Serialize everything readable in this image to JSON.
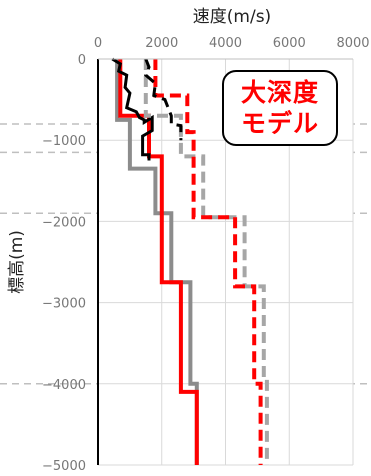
{
  "chart_data": {
    "type": "line",
    "title": "",
    "xlabel": "速度(m/s)",
    "ylabel": "標高(m)",
    "xlim": [
      0,
      8000
    ],
    "ylim": [
      -5000,
      0
    ],
    "xticks": [
      0,
      2000,
      4000,
      6000,
      8000
    ],
    "yticks": [
      0,
      -1000,
      -2000,
      -3000,
      -4000,
      -5000
    ],
    "x_axis_position": "top",
    "grid": true,
    "colors": {
      "red": "#ff0000",
      "black": "#000000",
      "gray": "#8c8c8c",
      "gray_light": "#a6a6a6",
      "grid": "#d9d9d9",
      "guide_dash": "#bfbfbf"
    },
    "annotation": {
      "lines": [
        "大深度",
        "モデル"
      ],
      "color": "#ff0000",
      "position": "top-right"
    },
    "guide_lines_y": [
      -800,
      -1150,
      -1900,
      -4000
    ],
    "series": [
      {
        "style": "solid",
        "color": "gray",
        "width": 4,
        "x": [
          600,
          600,
          1000,
          1000,
          1800,
          1800,
          2300,
          2300,
          2900,
          2900,
          3100,
          3100
        ],
        "y": [
          0,
          -750,
          -750,
          -1350,
          -1350,
          -1900,
          -1900,
          -2750,
          -2750,
          -4000,
          -4000,
          -5000
        ]
      },
      {
        "style": "solid",
        "color": "red",
        "width": 4,
        "x": [
          700,
          700,
          1600,
          1600,
          2000,
          2000,
          2600,
          2600,
          3000,
          3000,
          3100,
          3100
        ],
        "y": [
          0,
          -700,
          -700,
          -1200,
          -1200,
          -2750,
          -2750,
          -4100,
          -4100,
          -4100,
          -4100,
          -5000
        ]
      },
      {
        "style": "solid",
        "color": "black",
        "width": 3,
        "x": [
          450,
          700,
          650,
          900,
          850,
          1000,
          900,
          1200,
          1300,
          1450,
          1450,
          1700,
          1700,
          1400,
          1400,
          1600,
          1600
        ],
        "y": [
          0,
          -60,
          -150,
          -200,
          -350,
          -420,
          -600,
          -650,
          -720,
          -750,
          -780,
          -720,
          -880,
          -950,
          -1180,
          -1180,
          -1250
        ]
      },
      {
        "style": "dashed",
        "color": "gray_light",
        "width": 4,
        "x": [
          1500,
          1500,
          2600,
          2600,
          3300,
          3300,
          4600,
          4600,
          5200,
          5200,
          5300,
          5300
        ],
        "y": [
          0,
          -700,
          -700,
          -1200,
          -1200,
          -1950,
          -1950,
          -2800,
          -2800,
          -3950,
          -3950,
          -5000
        ]
      },
      {
        "style": "dashed",
        "color": "red",
        "width": 4,
        "x": [
          1800,
          1800,
          2800,
          2800,
          3000,
          3000,
          4300,
          4300,
          4900,
          4900,
          5100,
          5100
        ],
        "y": [
          0,
          -450,
          -450,
          -900,
          -900,
          -1950,
          -1950,
          -2800,
          -2800,
          -4000,
          -4000,
          -5000
        ]
      },
      {
        "style": "dashed",
        "color": "black",
        "width": 3,
        "x": [
          1500,
          1600,
          1500,
          1800,
          1750,
          2100,
          2200,
          2300,
          2300,
          2600,
          2600
        ],
        "y": [
          0,
          -100,
          -200,
          -300,
          -450,
          -500,
          -600,
          -700,
          -800,
          -820,
          -1000
        ]
      }
    ]
  }
}
